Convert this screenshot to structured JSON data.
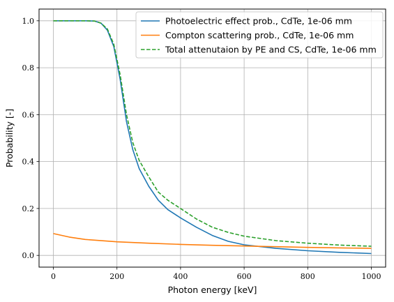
{
  "chart_data": {
    "type": "line",
    "xlabel": "Photon energy [keV]",
    "ylabel": "Probability [-]",
    "xlim": [
      -45,
      1045
    ],
    "ylim": [
      -0.05,
      1.05
    ],
    "xticks": [
      0,
      200,
      400,
      600,
      800,
      1000
    ],
    "xtick_labels": [
      "0",
      "200",
      "400",
      "600",
      "800",
      "1000"
    ],
    "yticks": [
      0.0,
      0.2,
      0.4,
      0.6,
      0.8,
      1.0
    ],
    "ytick_labels": [
      "0.0",
      "0.2",
      "0.4",
      "0.6",
      "0.8",
      "1.0"
    ],
    "grid": true,
    "legend_position": "top-right",
    "series": [
      {
        "name": "Photoelectric effect prob., CdTe, 1e-06 mm",
        "color": "#1f77b4",
        "style": "solid",
        "x": [
          0,
          50,
          100,
          130,
          150,
          170,
          190,
          210,
          230,
          250,
          270,
          300,
          330,
          360,
          400,
          450,
          500,
          550,
          600,
          700,
          800,
          900,
          1000
        ],
        "y": [
          1.0,
          1.0,
          1.0,
          0.999,
          0.99,
          0.96,
          0.89,
          0.75,
          0.57,
          0.45,
          0.37,
          0.295,
          0.235,
          0.195,
          0.16,
          0.12,
          0.085,
          0.06,
          0.045,
          0.03,
          0.02,
          0.013,
          0.008
        ]
      },
      {
        "name": "Compton scattering prob., CdTe, 1e-06 mm",
        "color": "#ff7f0e",
        "style": "solid",
        "x": [
          0,
          50,
          100,
          200,
          300,
          400,
          500,
          600,
          700,
          800,
          900,
          1000
        ],
        "y": [
          0.093,
          0.078,
          0.068,
          0.058,
          0.052,
          0.047,
          0.043,
          0.04,
          0.037,
          0.034,
          0.032,
          0.03
        ]
      },
      {
        "name": "Total attenutaion by PE and CS, CdTe, 1e-06 mm",
        "color": "#2ca02c",
        "style": "dashed",
        "x": [
          0,
          50,
          100,
          130,
          150,
          170,
          190,
          210,
          230,
          250,
          270,
          300,
          330,
          360,
          400,
          450,
          500,
          550,
          600,
          700,
          800,
          900,
          1000
        ],
        "y": [
          1.0,
          1.0,
          1.0,
          0.999,
          0.99,
          0.965,
          0.9,
          0.77,
          0.6,
          0.48,
          0.405,
          0.335,
          0.27,
          0.235,
          0.2,
          0.155,
          0.12,
          0.098,
          0.082,
          0.063,
          0.052,
          0.044,
          0.039
        ]
      }
    ]
  }
}
